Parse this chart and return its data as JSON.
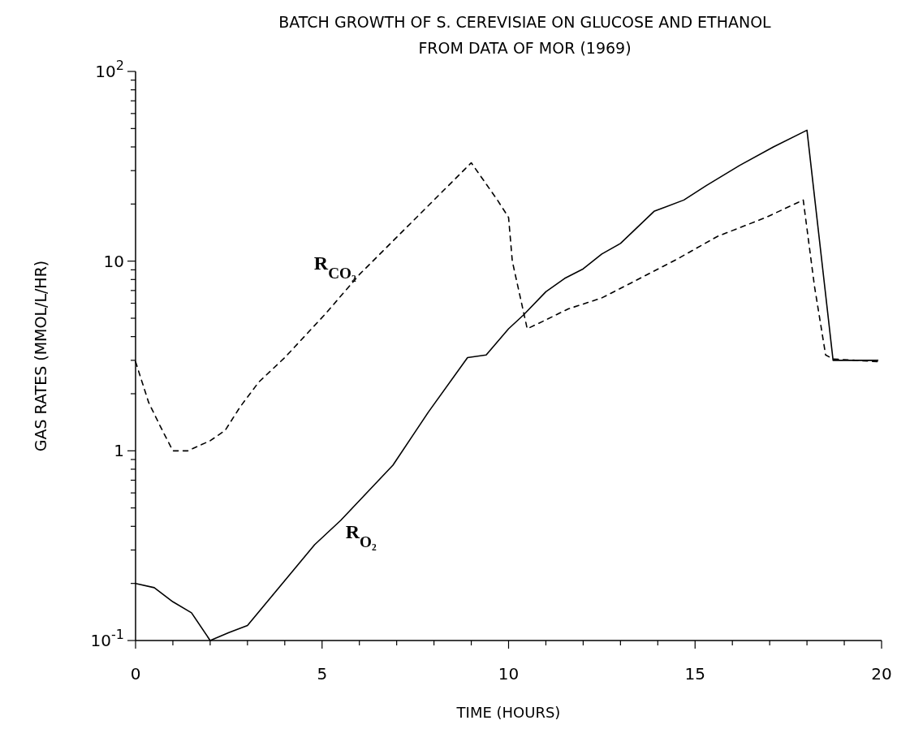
{
  "chart_data": {
    "type": "line",
    "title": "BATCH GROWTH OF S. CEREVISIAE ON GLUCOSE AND ETHANOL",
    "subtitle": "FROM DATA OF MOR (1969)",
    "xlabel": "TIME (HOURS)",
    "ylabel": "GAS RATES (MMOL/L/HR)",
    "log": "y",
    "grid": false,
    "legend": false,
    "marker": "none",
    "xlim": [
      0,
      20
    ],
    "xticks": [
      0,
      {
        "value": 1,
        "label": null
      },
      {
        "value": 2,
        "label": null
      },
      {
        "value": 3,
        "label": null
      },
      {
        "value": 4,
        "label": null
      },
      5,
      {
        "value": 6,
        "label": null
      },
      {
        "value": 7,
        "label": null
      },
      {
        "value": 8,
        "label": null
      },
      {
        "value": 9,
        "label": null
      },
      10,
      {
        "value": 11,
        "label": null
      },
      {
        "value": 12,
        "label": null
      },
      {
        "value": 13,
        "label": null
      },
      {
        "value": 14,
        "label": null
      },
      15,
      {
        "value": 16,
        "label": null
      },
      {
        "value": 17,
        "label": null
      },
      {
        "value": 18,
        "label": null
      },
      {
        "value": 19,
        "label": null
      },
      20
    ],
    "ylim": [
      0.1,
      100
    ],
    "yticks": [
      {
        "value": 0.1,
        "label": "10$^{-1}$"
      },
      {
        "value": 0.2,
        "label": null
      },
      {
        "value": 0.3,
        "label": null
      },
      {
        "value": 0.4,
        "label": null
      },
      {
        "value": 0.5,
        "label": null
      },
      {
        "value": 0.6,
        "label": null
      },
      {
        "value": 0.7,
        "label": null
      },
      {
        "value": 0.8,
        "label": null
      },
      {
        "value": 0.9,
        "label": null
      },
      1,
      {
        "value": 2,
        "label": null
      },
      {
        "value": 3,
        "label": null
      },
      {
        "value": 4,
        "label": null
      },
      {
        "value": 5,
        "label": null
      },
      {
        "value": 6,
        "label": null
      },
      {
        "value": 7,
        "label": null
      },
      {
        "value": 8,
        "label": null
      },
      {
        "value": 9,
        "label": null
      },
      10,
      {
        "value": 20,
        "label": null
      },
      {
        "value": 30,
        "label": null
      },
      {
        "value": 40,
        "label": null
      },
      {
        "value": 50,
        "label": null
      },
      {
        "value": 60,
        "label": null
      },
      {
        "value": 70,
        "label": null
      },
      {
        "value": 80,
        "label": null
      },
      {
        "value": 90,
        "label": null
      },
      {
        "value": 100,
        "label": "10$^{2}$"
      }
    ],
    "series": [
      {
        "name": "R$_{O₂}$",
        "color": "#000000",
        "line_style": "solid",
        "x": [
          0,
          0.5,
          1,
          1.5,
          2,
          2.5,
          3,
          4.8,
          5.5,
          6.9,
          7.85,
          8.9,
          9.4,
          10,
          10.4,
          11,
          11.5,
          12,
          12.5,
          13,
          13.9,
          14.7,
          15.3,
          16.2,
          17.1,
          18,
          18.7,
          19.9
        ],
        "values": [
          0.2,
          0.19,
          0.16,
          0.14,
          0.1,
          0.11,
          0.12,
          0.32,
          0.43,
          0.84,
          1.6,
          3.1,
          3.2,
          4.4,
          5.2,
          6.9,
          8.1,
          9.1,
          10.9,
          12.4,
          18.3,
          21,
          25,
          32,
          40,
          49,
          3,
          3
        ]
      },
      {
        "name": "R$_{CO₂}$",
        "color": "#000000",
        "line_style": "dashed",
        "x": [
          0,
          0.35,
          0.66,
          1,
          1.4,
          2,
          2.4,
          2.8,
          3.3,
          4,
          5.1,
          6,
          9,
          9.7,
          10,
          10.1,
          10.4,
          10.5,
          11,
          11.6,
          12.5,
          13.3,
          14.5,
          15.6,
          16.9,
          17.9,
          18.2,
          18.5,
          18.7,
          19.9
        ],
        "values": [
          2.95,
          1.8,
          1.35,
          1,
          1,
          1.13,
          1.28,
          1.7,
          2.3,
          3.1,
          5.3,
          8.5,
          33,
          21,
          17,
          10,
          5.4,
          4.4,
          4.9,
          5.6,
          6.4,
          7.7,
          10.2,
          13.5,
          17,
          21,
          7.4,
          3.2,
          3.05,
          2.95
        ]
      }
    ]
  }
}
